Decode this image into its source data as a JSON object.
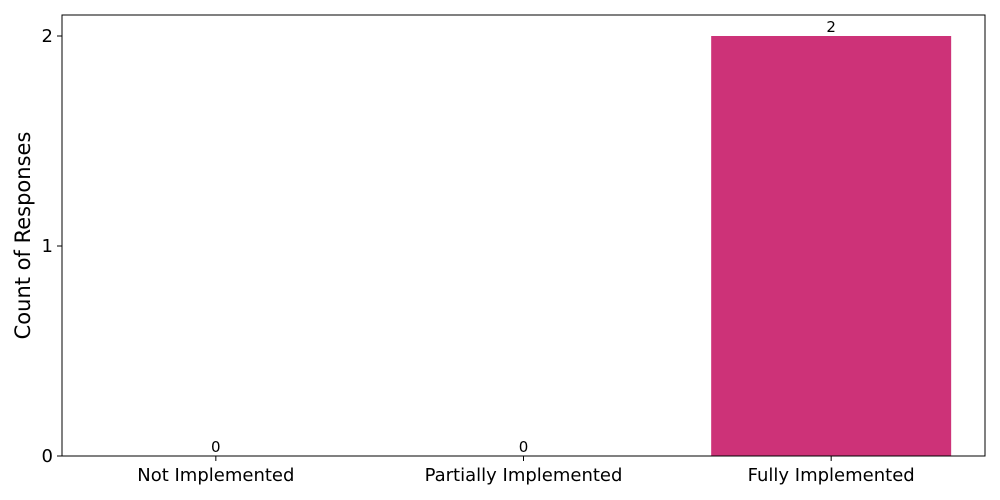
{
  "chart_data": {
    "type": "bar",
    "categories": [
      "Not Implemented",
      "Partially Implemented",
      "Fully Implemented"
    ],
    "values": [
      0,
      0,
      2
    ],
    "data_labels": [
      "0",
      "0",
      "2"
    ],
    "xlabel": "",
    "ylabel": "Count of Responses",
    "ylim": [
      0,
      2.1
    ],
    "yticks": [
      0,
      1,
      2
    ],
    "ytick_labels": [
      "0",
      "1",
      "2"
    ],
    "grid": false,
    "bar_color": "#cd3278"
  }
}
